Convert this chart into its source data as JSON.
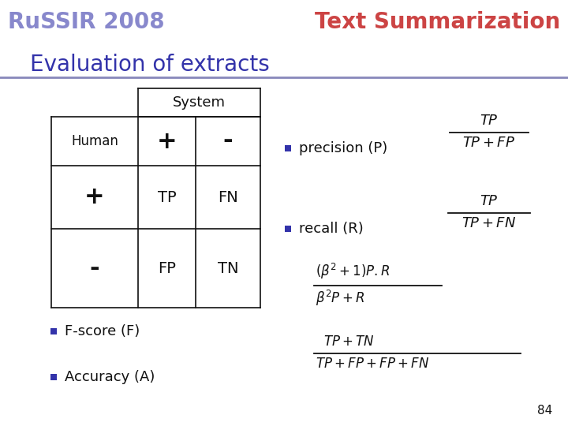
{
  "slide_bg": "#ffffff",
  "title": "Evaluation of extracts",
  "title_color": "#3333aa",
  "title_fontsize": 20,
  "header_left": "RuSSIR 2008",
  "header_right": "Text Summarization",
  "header_color": "#8888cc",
  "line_color": "#8888bb",
  "bullet_color": "#3333aa",
  "page_number": "84"
}
